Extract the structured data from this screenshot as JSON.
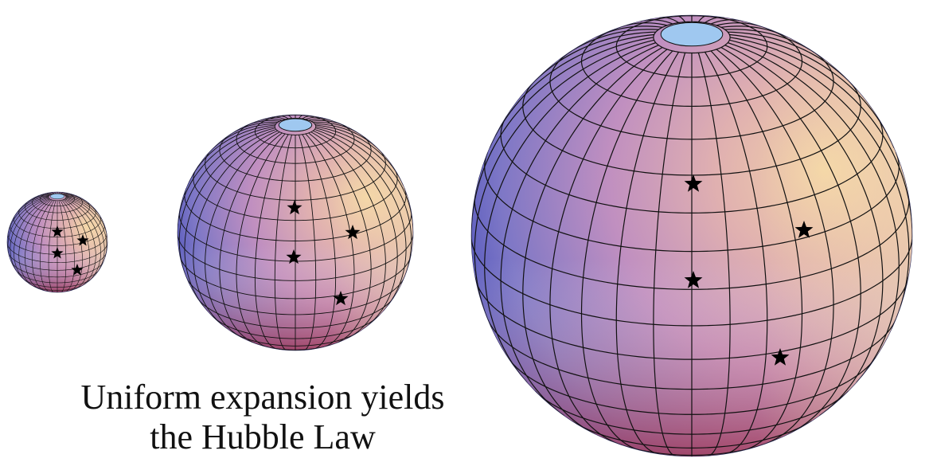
{
  "caption": {
    "line1": "Uniform expansion yields",
    "line2": "the Hubble Law"
  },
  "colors": {
    "background": "#ffffff",
    "sphere_blue": "#3f56c8",
    "sphere_pink": "#c07fb0",
    "sphere_orange": "#f0b070",
    "sphere_red": "#a83a3a",
    "pole_cap": "#9fc8f0",
    "grid_lines": "#111111",
    "stars": "#000000",
    "caption_text": "#111111"
  },
  "spheres": [
    {
      "name": "small-sphere",
      "stars": 4
    },
    {
      "name": "medium-sphere",
      "stars": 4
    },
    {
      "name": "large-sphere",
      "stars": 4
    }
  ],
  "icons": {
    "star": "star-icon",
    "sphere": "sphere-icon"
  }
}
